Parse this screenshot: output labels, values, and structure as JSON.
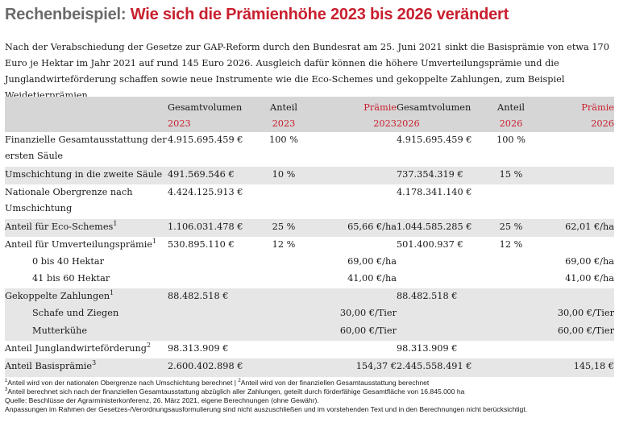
{
  "title": {
    "part1": "Rechenbeispiel:",
    "part2": "Wie sich die Prämienhöhe 2023 bis 2026 verändert"
  },
  "intro": "Nach der Verabschiedung der Gesetze zur GAP-Reform durch den Bundesrat am 25. Juni 2021 sinkt die Basisprämie von etwa 170 Euro je Hektar im Jahr 2021 auf rund 145 Euro 2026. Ausgleich dafür können die höhere Umverteilungsprämie und die Junglandwirteförderung schaffen sowie neue Instrumente wie die Eco-Schemes und gekoppelte Zahlungen, zum Beispiel Weidetierprämien.",
  "table": {
    "headers": {
      "gv2023": [
        "Gesamtvolumen",
        "2023"
      ],
      "an2023": [
        "Anteil",
        "2023"
      ],
      "pr2023": [
        "Prämie",
        "2023"
      ],
      "gv2026": [
        "Gesamtvolumen",
        "2026"
      ],
      "an2026": [
        "Anteil",
        "2026"
      ],
      "pr2026": [
        "Prämie",
        "2026"
      ]
    },
    "rows": [
      {
        "label": "Finanzielle Gesamtausstattung der ersten Säule",
        "sup": "",
        "gv2023": "4.915.695.459 €",
        "an2023": "100 %",
        "pr2023": "",
        "gv2026": "4.915.695.459 €",
        "an2026": "100 %",
        "pr2026": ""
      },
      {
        "label": "Umschichtung in die zweite Säule",
        "sup": "",
        "gv2023": "491.569.546 €",
        "an2023": "10 %",
        "pr2023": "",
        "gv2026": "737.354.319 €",
        "an2026": "15 %",
        "pr2026": ""
      },
      {
        "label": "Nationale Obergrenze nach Umschichtung",
        "sup": "",
        "gv2023": "4.424.125.913 €",
        "an2023": "",
        "pr2023": "",
        "gv2026": "4.178.341.140 €",
        "an2026": "",
        "pr2026": ""
      },
      {
        "label": "Anteil für Eco-Schemes",
        "sup": "1",
        "gv2023": "1.106.031.478 €",
        "an2023": "25 %",
        "pr2023": "65,66 €/ha",
        "gv2026": "1.044.585.285 €",
        "an2026": "25 %",
        "pr2026": "62,01 €/ha"
      },
      {
        "label": "Anteil für Umverteilungsprämie",
        "sup": "1",
        "gv2023": "530.895.110 €",
        "an2023": "12 %",
        "pr2023": "",
        "gv2026": "501.400.937 €",
        "an2026": "12 %",
        "pr2026": ""
      },
      {
        "label": "0 bis 40 Hektar",
        "sup": "",
        "gv2023": "",
        "an2023": "",
        "pr2023": "69,00 €/ha",
        "gv2026": "",
        "an2026": "",
        "pr2026": "69,00 €/ha"
      },
      {
        "label": "41 bis 60 Hektar",
        "sup": "",
        "gv2023": "",
        "an2023": "",
        "pr2023": "41,00 €/ha",
        "gv2026": "",
        "an2026": "",
        "pr2026": "41,00 €/ha"
      },
      {
        "label": "Gekoppelte Zahlungen",
        "sup": "1",
        "gv2023": "88.482.518 €",
        "an2023": "",
        "pr2023": "",
        "gv2026": "88.482.518 €",
        "an2026": "",
        "pr2026": ""
      },
      {
        "label": "Schafe und Ziegen",
        "sup": "",
        "gv2023": "",
        "an2023": "",
        "pr2023": "30,00 €/Tier",
        "gv2026": "",
        "an2026": "",
        "pr2026": "30,00 €/Tier"
      },
      {
        "label": "Mutterkühe",
        "sup": "",
        "gv2023": "",
        "an2023": "",
        "pr2023": "60,00 €/Tier",
        "gv2026": "",
        "an2026": "",
        "pr2026": "60,00 €/Tier"
      },
      {
        "label": "Anteil Junglandwirteförderung",
        "sup": "2",
        "gv2023": "98.313.909 €",
        "an2023": "",
        "pr2023": "",
        "gv2026": "98.313.909 €",
        "an2026": "",
        "pr2026": ""
      },
      {
        "label": "Anteil Basisprämie",
        "sup": "3",
        "gv2023": "2.600.402.898 €",
        "an2023": "",
        "pr2023": "154,37 €",
        "gv2026": "2.445.558.491 €",
        "an2026": "",
        "pr2026": "145,18 €"
      }
    ]
  },
  "footnotes": {
    "f1": "Anteil wird von der nationalen Obergrenze nach Umschichtung berechnet",
    "sep": "|",
    "f2": "Anteil wird von der finanziellen Gesamtausstattung berechnet",
    "f3": "Anteil berechnet sich nach der finanziellen Gesamtausstattung abzüglich aller Zahlungen, geteilt durch förderfähige Gesamtfläche von 16.845.000 ha",
    "source": "Quelle: Beschlüsse der Agrarministerkonferenz, 26. März 2021, eigene Berechnungen (ohne Gewähr).",
    "note": "Anpassungen im Rahmen der Gesetzes-/Verordnungsausformulierung sind nicht auszuschließen und im vorstehenden Text und in den Berechnungen nicht berücksichtigt.",
    "m1": "1",
    "m2": "2",
    "m3": "3"
  }
}
